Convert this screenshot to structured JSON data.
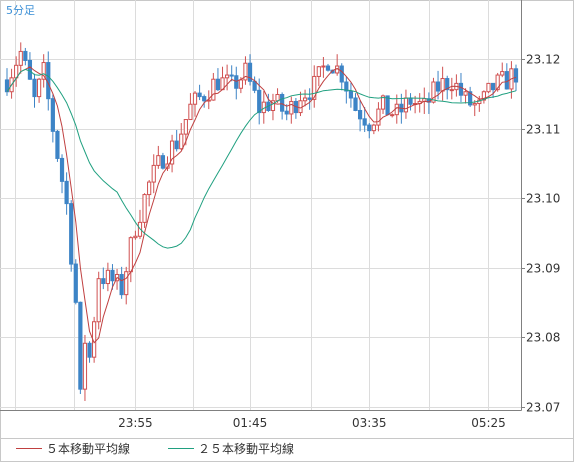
{
  "chart_data": {
    "type": "candlestick",
    "timeframe_label": "5分足",
    "x_tick_labels": [
      "23:55",
      "01:45",
      "03:35",
      "05:25"
    ],
    "y_tick_labels": [
      "23.12",
      "23.11",
      "23.10",
      "23.09",
      "23.08",
      "23.07"
    ],
    "y_ticks": [
      23.12,
      23.11,
      23.1,
      23.09,
      23.08,
      23.07
    ],
    "ylim": [
      23.0695,
      23.1285
    ],
    "grid": true,
    "legend_position": "bottom-left",
    "colors": {
      "up_body": "#ffffff",
      "up_border": "#d05050",
      "down_body": "#3d84c6",
      "down_border": "#3d84c6",
      "ma5": "#c04040",
      "ma25": "#20a080",
      "grid": "#dcdcdc",
      "axis": "#808080",
      "label": "#333333",
      "timeframe": "#3b8fd6"
    },
    "series": [
      {
        "name": "５本移動平均線",
        "type": "line",
        "color": "#c04040"
      },
      {
        "name": "２５本移動平均線",
        "type": "line",
        "color": "#20a080"
      }
    ],
    "candles": []
  }
}
